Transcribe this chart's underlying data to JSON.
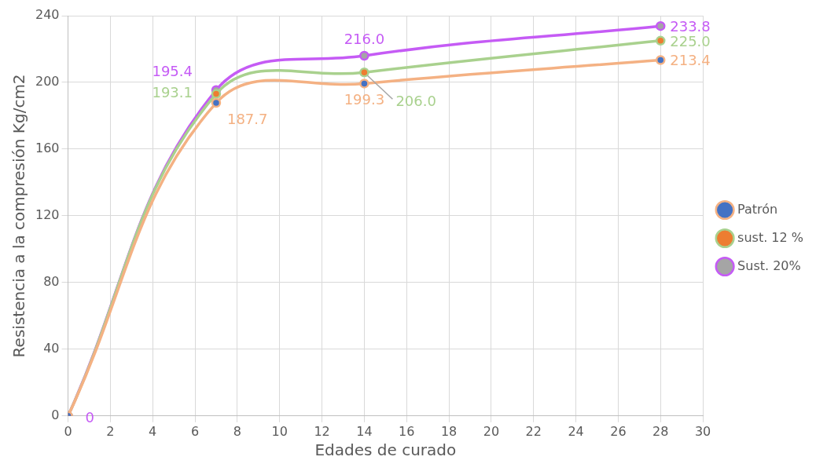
{
  "chart_data": {
    "type": "line",
    "xlabel": "Edades de curado",
    "ylabel": "Resistencia a la compresión Kg/cm2",
    "x": [
      0,
      7,
      14,
      28
    ],
    "series": [
      {
        "name": "Patrón",
        "color": "#f4b183",
        "colors": [
          "#4472c4",
          "#4472c4",
          "#4472c4",
          "#4472c4"
        ],
        "values": [
          0,
          187.7,
          199.3,
          213.4
        ],
        "value_labels": [
          null,
          "187.7",
          "199.3",
          "213.4"
        ]
      },
      {
        "name": "sust. 12 %",
        "color": "#a9d18e",
        "colors": [
          "#ed7d31",
          "#ed7d31",
          "#ed7d31",
          "#ed7d31"
        ],
        "values": [
          0,
          193.1,
          206.0,
          225.0
        ],
        "value_labels": [
          null,
          "193.1",
          "206.0",
          "225.0"
        ]
      },
      {
        "name": "Sust. 20%",
        "color": "#c55bf5",
        "colors": [
          "#a5a5a5",
          "#a5a5a5",
          "#a5a5a5",
          "#a5a5a5"
        ],
        "values": [
          0,
          195.4,
          216.0,
          233.8
        ],
        "value_labels": [
          "0",
          "195.4",
          "216.0",
          "233.8"
        ]
      }
    ],
    "xlim": [
      0,
      30
    ],
    "xticks": [
      0,
      2,
      4,
      6,
      8,
      10,
      12,
      14,
      16,
      18,
      20,
      22,
      24,
      26,
      28,
      30
    ],
    "ylim": [
      0,
      240
    ],
    "yticks": [
      0,
      40,
      80,
      120,
      160,
      200,
      240
    ],
    "grid": true,
    "legend": "right",
    "marker": "circle",
    "line_style": "solid"
  }
}
